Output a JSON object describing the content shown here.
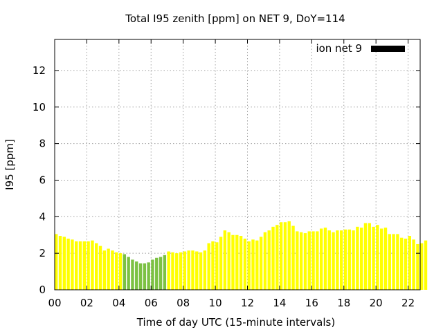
{
  "chart_data": {
    "type": "bar",
    "title": "Total I95 zenith [ppm] on NET 9, DoY=114",
    "xlabel": "Time of day UTC (15-minute intervals)",
    "ylabel": "I95 [ppm]",
    "xlim": [
      0,
      22.75
    ],
    "ylim": [
      0,
      13.7
    ],
    "x_ticks": [
      "00",
      "02",
      "04",
      "06",
      "08",
      "10",
      "12",
      "14",
      "16",
      "18",
      "20",
      "22"
    ],
    "y_ticks": [
      "0",
      "2",
      "4",
      "6",
      "8",
      "10",
      "12"
    ],
    "grid": true,
    "bin_width_hours": 0.25,
    "legend": {
      "label": "ion net 9",
      "placement": "top-right",
      "color": "#000000"
    },
    "colors": {
      "high": "#ffff00",
      "low": "#7cc143",
      "legend_swatch": "#000000"
    },
    "threshold": 2.0,
    "series": [
      {
        "values": [
          3.05,
          2.95,
          2.9,
          2.8,
          2.75,
          2.65,
          2.65,
          2.65,
          2.65,
          2.7,
          2.55,
          2.4,
          2.15,
          2.25,
          2.15,
          2.05,
          2.0,
          1.95,
          1.8,
          1.65,
          1.55,
          1.45,
          1.45,
          1.5,
          1.65,
          1.75,
          1.8,
          1.9,
          2.1,
          2.05,
          2.0,
          2.05,
          2.1,
          2.15,
          2.15,
          2.1,
          2.05,
          2.15,
          2.55,
          2.65,
          2.6,
          2.9,
          3.25,
          3.15,
          3.0,
          3.0,
          2.95,
          2.8,
          2.65,
          2.75,
          2.7,
          2.9,
          3.15,
          3.25,
          3.45,
          3.55,
          3.7,
          3.7,
          3.75,
          3.5,
          3.2,
          3.15,
          3.1,
          3.2,
          3.2,
          3.2,
          3.35,
          3.4,
          3.25,
          3.15,
          3.25,
          3.25,
          3.3,
          3.3,
          3.25,
          3.45,
          3.4,
          3.65,
          3.65,
          3.45,
          3.55,
          3.35,
          3.4,
          3.05,
          3.05,
          3.05,
          2.85,
          2.8,
          2.95,
          2.75,
          2.5,
          2.55,
          2.7
        ]
      }
    ]
  }
}
